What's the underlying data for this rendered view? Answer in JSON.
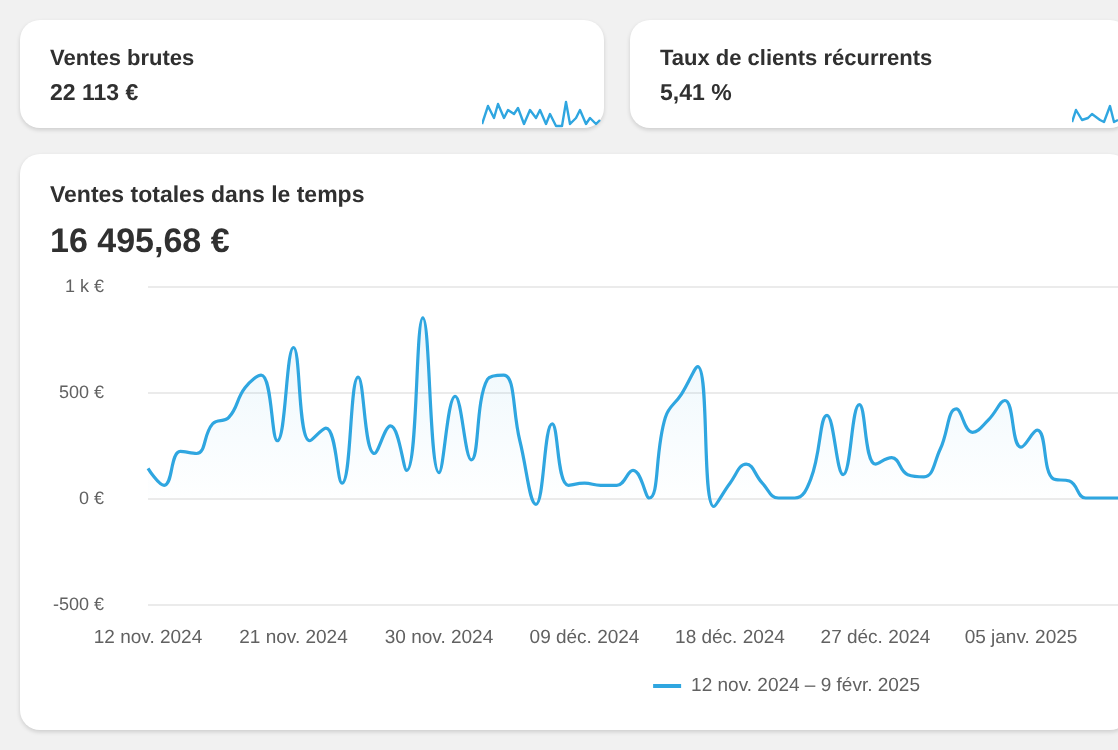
{
  "chart_data": [
    {
      "type": "other",
      "title": "Ventes brutes",
      "subtitle": "22 113 €"
    },
    {
      "type": "other",
      "title": "Taux de clients récurrents",
      "subtitle": "5,41 %"
    },
    {
      "type": "line",
      "title": "Ventes totales dans le temps",
      "subtitle": "16 495,68 €",
      "categories": [
        "12 nov. 2024",
        null,
        null,
        null,
        null,
        null,
        null,
        null,
        null,
        "21 nov. 2024",
        null,
        null,
        null,
        null,
        null,
        null,
        null,
        null,
        "30 nov. 2024",
        null,
        null,
        null,
        null,
        null,
        null,
        null,
        null,
        "09 déc. 2024",
        null,
        null,
        null,
        null,
        null,
        null,
        null,
        null,
        "18 déc. 2024",
        null,
        null,
        null,
        null,
        null,
        null,
        null,
        null,
        "27 déc. 2024",
        null,
        null,
        null,
        null,
        null,
        null,
        null,
        null,
        "05 janv. 2025",
        null,
        null,
        null,
        null,
        null,
        null
      ],
      "series": [
        {
          "name": "12 nov. 2024 – 9 févr. 2025",
          "color": "#2fa6e0",
          "values": [
            140,
            60,
            220,
            210,
            350,
            380,
            520,
            580,
            270,
            710,
            270,
            330,
            70,
            570,
            210,
            340,
            130,
            850,
            120,
            480,
            180,
            560,
            580,
            270,
            -30,
            350,
            60,
            70,
            60,
            60,
            130,
            0,
            380,
            490,
            620,
            -40,
            70,
            160,
            70,
            0,
            0,
            90,
            390,
            110,
            440,
            160,
            190,
            110,
            100,
            230,
            420,
            310,
            370,
            460,
            240,
            320,
            90,
            80,
            0,
            0,
            0
          ]
        }
      ],
      "ylim": [
        -500,
        1000
      ],
      "yticks": [
        {
          "value": -500,
          "label": "-500 €"
        },
        {
          "value": 0,
          "label": "0 €"
        },
        {
          "value": 500,
          "label": "500 €"
        },
        {
          "value": 1000,
          "label": "1 k €"
        }
      ],
      "grid": "y",
      "legend": "bottom"
    }
  ]
}
